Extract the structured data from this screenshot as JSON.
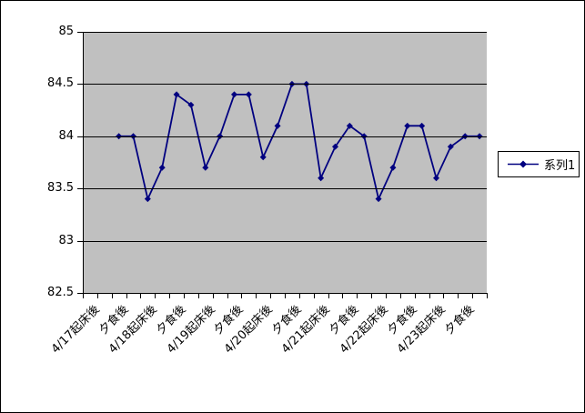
{
  "chart_data": {
    "type": "line",
    "title": "",
    "series": [
      {
        "name": "系列1",
        "values": [
          84.0,
          84.0,
          83.4,
          83.7,
          84.4,
          84.3,
          83.7,
          84.0,
          84.4,
          84.4,
          83.8,
          84.1,
          84.5,
          84.5,
          83.6,
          83.9,
          84.1,
          84.0,
          83.4,
          83.7,
          84.1,
          84.1,
          83.6,
          83.9,
          84.0,
          84.0
        ]
      }
    ],
    "x_labels": [
      "4/17起床後",
      "夕食後",
      "4/18起床後",
      "夕食後",
      "4/19起床後",
      "夕食後",
      "4/20起床後",
      "夕食後",
      "4/21起床後",
      "夕食後",
      "4/22起床後",
      "夕食後",
      "4/23起床後",
      "夕食後"
    ],
    "xlabel": "",
    "ylabel": "",
    "ylim": [
      82.5,
      85
    ],
    "yticks": [
      82.5,
      83,
      83.5,
      84,
      84.5,
      85
    ],
    "layout": {
      "total_slots": 28,
      "first_value_slot": 2,
      "label_every_n_slots": 2,
      "grid": true,
      "legend_position": "right",
      "x_label_rotation_deg": 45,
      "marker": "diamond"
    },
    "colors": {
      "series": "#000080",
      "plot_bg": "#c0c0c0",
      "gridline": "#000000",
      "axis": "#000000",
      "chart_bg": "#ffffff",
      "chart_border": "#000000",
      "legend_bg": "#ffffff",
      "legend_border": "#000000"
    }
  },
  "legend": {
    "items": [
      "系列1"
    ]
  }
}
